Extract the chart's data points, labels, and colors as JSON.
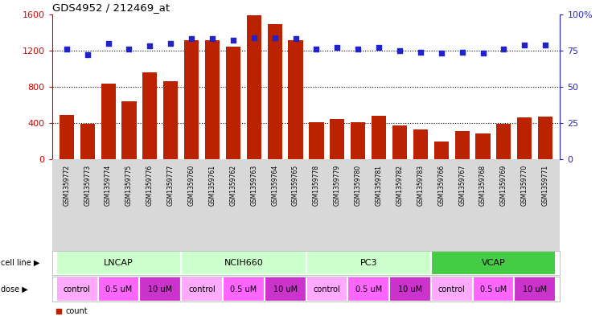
{
  "title": "GDS4952 / 212469_at",
  "samples": [
    "GSM1359772",
    "GSM1359773",
    "GSM1359774",
    "GSM1359775",
    "GSM1359776",
    "GSM1359777",
    "GSM1359760",
    "GSM1359761",
    "GSM1359762",
    "GSM1359763",
    "GSM1359764",
    "GSM1359765",
    "GSM1359778",
    "GSM1359779",
    "GSM1359780",
    "GSM1359781",
    "GSM1359782",
    "GSM1359783",
    "GSM1359766",
    "GSM1359767",
    "GSM1359768",
    "GSM1359769",
    "GSM1359770",
    "GSM1359771"
  ],
  "counts": [
    490,
    390,
    840,
    640,
    960,
    860,
    1310,
    1310,
    1240,
    1590,
    1490,
    1310,
    410,
    450,
    410,
    480,
    380,
    330,
    200,
    310,
    290,
    390,
    460,
    470
  ],
  "percentiles": [
    76,
    72,
    80,
    76,
    78,
    80,
    83,
    83,
    82,
    84,
    84,
    83,
    76,
    77,
    76,
    77,
    75,
    74,
    73,
    74,
    73,
    76,
    79,
    79
  ],
  "bar_color": "#bb2200",
  "dot_color": "#2222cc",
  "ylim_left": [
    0,
    1600
  ],
  "ylim_right": [
    0,
    100
  ],
  "yticks_left": [
    0,
    400,
    800,
    1200,
    1600
  ],
  "yticks_right": [
    0,
    25,
    50,
    75,
    100
  ],
  "ytick_labels_right": [
    "0",
    "25",
    "50",
    "75",
    "100%"
  ],
  "cell_lines": [
    "LNCAP",
    "NCIH660",
    "PC3",
    "VCAP"
  ],
  "cell_line_spans": [
    [
      0,
      5
    ],
    [
      6,
      11
    ],
    [
      12,
      17
    ],
    [
      18,
      23
    ]
  ],
  "cell_line_colors": [
    "#ccffcc",
    "#ccffcc",
    "#ccffcc",
    "#44cc44"
  ],
  "doses": [
    "control",
    "0.5 uM",
    "10 uM"
  ],
  "dose_colors": [
    "#ffaaff",
    "#ff66ff",
    "#cc33cc"
  ],
  "dose_spans": [
    [
      [
        -0.5,
        1.5
      ],
      [
        1.5,
        3.5
      ],
      [
        3.5,
        5.5
      ]
    ],
    [
      [
        5.5,
        7.5
      ],
      [
        7.5,
        9.5
      ],
      [
        9.5,
        11.5
      ]
    ],
    [
      [
        11.5,
        13.5
      ],
      [
        13.5,
        15.5
      ],
      [
        15.5,
        17.5
      ]
    ],
    [
      [
        17.5,
        19.5
      ],
      [
        19.5,
        21.5
      ],
      [
        21.5,
        23.5
      ]
    ]
  ],
  "left_axis_color": "#cc0000",
  "right_axis_color": "#2222cc",
  "xtick_bg": "#cccccc",
  "cell_line_border": "#aaaaaa",
  "dose_border": "#aaaaaa"
}
